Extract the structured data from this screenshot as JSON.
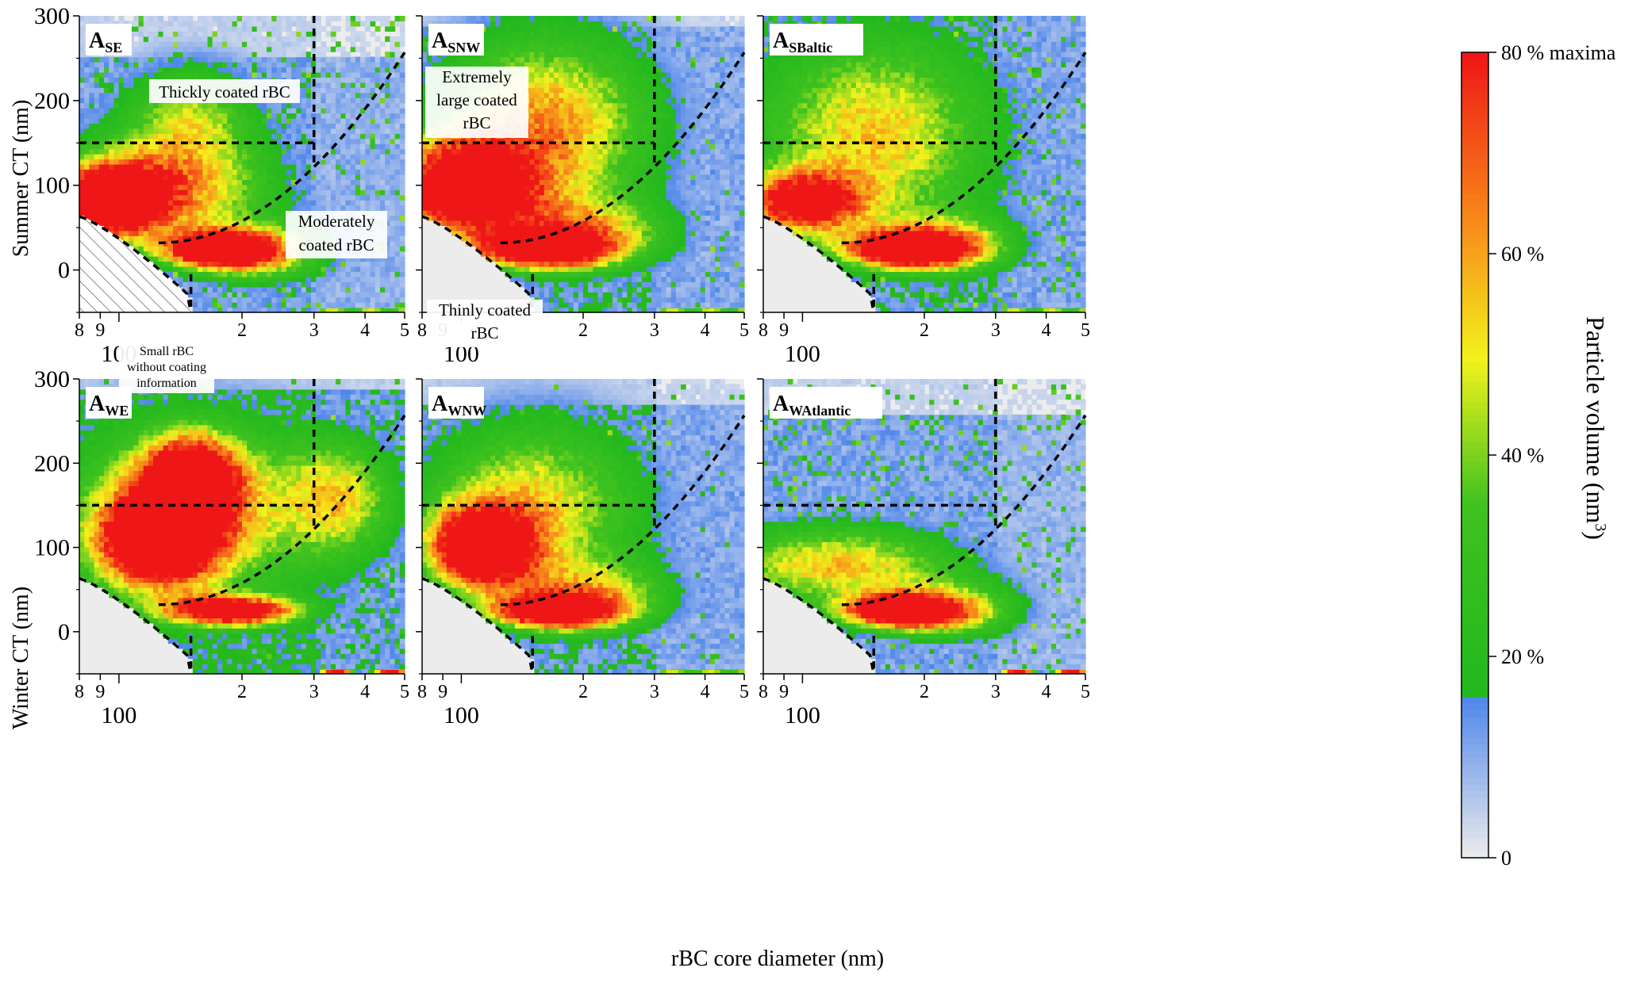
{
  "figure": {
    "x_axis_label": "rBC core diameter (nm)",
    "colorbar": {
      "label": "Particle volume (nm",
      "label_superscript": "3",
      "label_close": ")",
      "ticks": [
        {
          "value": 0,
          "label": "0"
        },
        {
          "value": 20,
          "label": "20 %"
        },
        {
          "value": 40,
          "label": "40 %"
        },
        {
          "value": 60,
          "label": "60 %"
        },
        {
          "value": 80,
          "label": "80 % maxima"
        }
      ],
      "stops": [
        {
          "pos": 0.0,
          "color": "#ececec"
        },
        {
          "pos": 0.2,
          "color": "#4f86ea"
        },
        {
          "pos": 0.2,
          "color": "#22b81e"
        },
        {
          "pos": 0.44,
          "color": "#3fc21f"
        },
        {
          "pos": 0.62,
          "color": "#f3f21c"
        },
        {
          "pos": 0.8,
          "color": "#f7841a"
        },
        {
          "pos": 1.0,
          "color": "#ee1616"
        }
      ]
    },
    "row_labels": [
      "Summer CT (nm)",
      "Winter CT (nm)"
    ],
    "y_ticks": [
      "0",
      "100",
      "200",
      "300"
    ],
    "x_ticks": [
      "8",
      "9",
      "2",
      "3",
      "4",
      "5"
    ],
    "x_major_label": "100",
    "annotations": {
      "thick": "Thickly coated rBC",
      "extreme_1": "Extremely",
      "extreme_2": "large coated",
      "extreme_3": "rBC",
      "moderate_1": "Moderately",
      "moderate_2": "coated rBC",
      "thin_1": "Thinly coated",
      "thin_2": "rBC",
      "small_1": "Small rBC",
      "small_2": "without coating",
      "small_3": "information"
    }
  },
  "chart_data": [
    {
      "type": "heatmap",
      "panel": "A",
      "panel_sub": "SE",
      "xlabel": "",
      "ylabel": "Summer CT (nm)",
      "xscale": "log",
      "xlim": [
        80,
        500
      ],
      "ylim": [
        -50,
        300
      ],
      "value_units": "% of maxima",
      "dividers": {
        "ct_threshold": 150,
        "diameter_threshold": 300,
        "small_core_limit": 150
      },
      "blobs": [
        {
          "cx_nm": 95,
          "cy_nm": 80,
          "sx": 0.09,
          "sy": 28,
          "peak": 95
        },
        {
          "cx_nm": 175,
          "cy_nm": 25,
          "sx": 0.09,
          "sy": 14,
          "peak": 95
        },
        {
          "cx_nm": 125,
          "cy_nm": 95,
          "sx": 0.2,
          "sy": 45,
          "peak": 60
        },
        {
          "cx_nm": 150,
          "cy_nm": 185,
          "sx": 0.12,
          "sy": 45,
          "peak": 40
        },
        {
          "cx_nm": 220,
          "cy_nm": 20,
          "sx": 0.12,
          "sy": 25,
          "peak": 50
        }
      ],
      "background_level": 14,
      "background_cutoff_ct": 250,
      "speckle": 0.3
    },
    {
      "type": "heatmap",
      "panel": "A",
      "panel_sub": "SNW",
      "xlabel": "",
      "ylabel": "",
      "xscale": "log",
      "xlim": [
        80,
        500
      ],
      "ylim": [
        -50,
        300
      ],
      "value_units": "% of maxima",
      "dividers": {
        "ct_threshold": 150,
        "diameter_threshold": 300,
        "small_core_limit": 150
      },
      "blobs": [
        {
          "cx_nm": 100,
          "cy_nm": 95,
          "sx": 0.12,
          "sy": 40,
          "peak": 100
        },
        {
          "cx_nm": 160,
          "cy_nm": 25,
          "sx": 0.1,
          "sy": 14,
          "peak": 95
        },
        {
          "cx_nm": 160,
          "cy_nm": 170,
          "sx": 0.2,
          "sy": 80,
          "peak": 62
        },
        {
          "cx_nm": 200,
          "cy_nm": 40,
          "sx": 0.15,
          "sy": 30,
          "peak": 50
        }
      ],
      "background_level": 16,
      "background_cutoff_ct": 290,
      "speckle": 0.15
    },
    {
      "type": "heatmap",
      "panel": "A",
      "panel_sub": "SBaltic",
      "xlabel": "",
      "ylabel": "",
      "xscale": "log",
      "xlim": [
        80,
        500
      ],
      "ylim": [
        -50,
        300
      ],
      "value_units": "% of maxima",
      "dividers": {
        "ct_threshold": 150,
        "diameter_threshold": 300,
        "small_core_limit": 150
      },
      "blobs": [
        {
          "cx_nm": 100,
          "cy_nm": 80,
          "sx": 0.1,
          "sy": 25,
          "peak": 80
        },
        {
          "cx_nm": 180,
          "cy_nm": 25,
          "sx": 0.1,
          "sy": 14,
          "peak": 100
        },
        {
          "cx_nm": 150,
          "cy_nm": 160,
          "sx": 0.22,
          "sy": 90,
          "peak": 55
        },
        {
          "cx_nm": 230,
          "cy_nm": 30,
          "sx": 0.12,
          "sy": 25,
          "peak": 45
        }
      ],
      "background_level": 17,
      "background_cutoff_ct": 300,
      "speckle": 0.35
    },
    {
      "type": "heatmap",
      "panel": "A",
      "panel_sub": "WE",
      "xlabel": "",
      "ylabel": "Winter CT (nm)",
      "xscale": "log",
      "xlim": [
        80,
        500
      ],
      "ylim": [
        -50,
        300
      ],
      "value_units": "% of maxima",
      "dividers": {
        "ct_threshold": 150,
        "diameter_threshold": 300,
        "small_core_limit": 150
      },
      "blobs": [
        {
          "cx_nm": 125,
          "cy_nm": 110,
          "sx": 0.1,
          "sy": 38,
          "peak": 100
        },
        {
          "cx_nm": 150,
          "cy_nm": 180,
          "sx": 0.08,
          "sy": 35,
          "peak": 95
        },
        {
          "cx_nm": 190,
          "cy_nm": 25,
          "sx": 0.11,
          "sy": 12,
          "peak": 95
        },
        {
          "cx_nm": 150,
          "cy_nm": 140,
          "sx": 0.25,
          "sy": 85,
          "peak": 50
        },
        {
          "cx_nm": 350,
          "cy_nm": 160,
          "sx": 0.1,
          "sy": 50,
          "peak": 40
        }
      ],
      "background_level": 20,
      "background_cutoff_ct": 285,
      "speckle": 0.1
    },
    {
      "type": "heatmap",
      "panel": "A",
      "panel_sub": "WNW",
      "xlabel": "rBC core diameter (nm)",
      "ylabel": "",
      "xscale": "log",
      "xlim": [
        80,
        500
      ],
      "ylim": [
        -50,
        300
      ],
      "value_units": "% of maxima",
      "dividers": {
        "ct_threshold": 150,
        "diameter_threshold": 300,
        "small_core_limit": 150
      },
      "blobs": [
        {
          "cx_nm": 112,
          "cy_nm": 100,
          "sx": 0.09,
          "sy": 33,
          "peak": 100
        },
        {
          "cx_nm": 170,
          "cy_nm": 25,
          "sx": 0.1,
          "sy": 13,
          "peak": 95
        },
        {
          "cx_nm": 150,
          "cy_nm": 150,
          "sx": 0.2,
          "sy": 75,
          "peak": 52
        },
        {
          "cx_nm": 210,
          "cy_nm": 40,
          "sx": 0.14,
          "sy": 30,
          "peak": 45
        }
      ],
      "background_level": 16,
      "background_cutoff_ct": 270,
      "speckle": 0.1
    },
    {
      "type": "heatmap",
      "panel": "A",
      "panel_sub": "WAtlantic",
      "xlabel": "",
      "ylabel": "",
      "xscale": "log",
      "xlim": [
        80,
        500
      ],
      "ylim": [
        -50,
        300
      ],
      "value_units": "% of maxima",
      "dividers": {
        "ct_threshold": 150,
        "diameter_threshold": 300,
        "small_core_limit": 150
      },
      "blobs": [
        {
          "cx_nm": 175,
          "cy_nm": 25,
          "sx": 0.1,
          "sy": 13,
          "peak": 95
        },
        {
          "cx_nm": 120,
          "cy_nm": 80,
          "sx": 0.22,
          "sy": 35,
          "peak": 55
        },
        {
          "cx_nm": 230,
          "cy_nm": 25,
          "sx": 0.13,
          "sy": 25,
          "peak": 45
        }
      ],
      "background_level": 13,
      "background_cutoff_ct": 260,
      "speckle": 0.3
    }
  ]
}
